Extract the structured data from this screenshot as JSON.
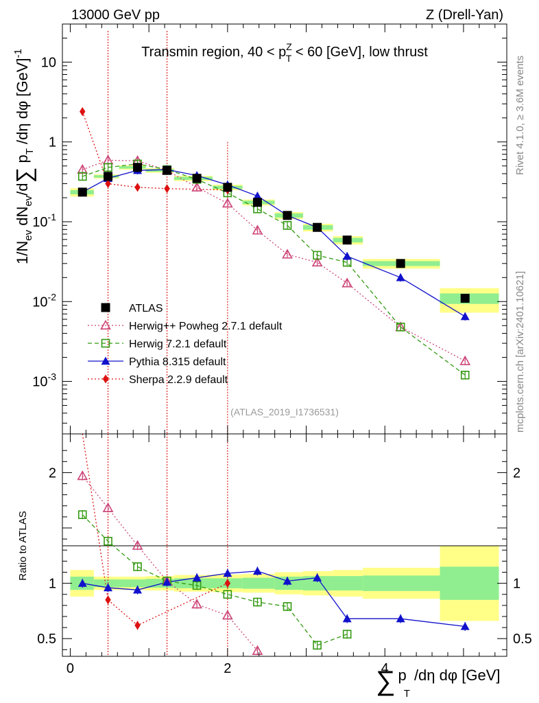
{
  "header": {
    "left": "13000 GeV pp",
    "right": "Z (Drell-Yan)"
  },
  "side_labels": {
    "rivet": "Rivet 4.1.0, ≥ 3.6M events",
    "mcplots": "mcplots.cern.ch [arXiv:2401.10621]"
  },
  "chart_data": {
    "type": "scatter",
    "title": "Transmin region, 40 < pT^Z < 60 [GeV], low thrust",
    "title_parts": {
      "a": "Transmin region, 40 < p",
      "sup": "Z",
      "sub": "T",
      "b": " < 60 [GeV], low thrust"
    },
    "analysis_tag": "(ATLAS_2019_I1736531)",
    "xlabel": "∑ pT /dη dφ [GeV]",
    "xlabel_parts": {
      "sum": "∑",
      "p": "p",
      "sub": "T",
      "rest": "/dη dφ [GeV]"
    },
    "ylabel": "1/Nev dNev/d∑ pT /dη dφ [GeV]^-1",
    "ylabel_parts": {
      "a": "1/N",
      "ev": "ev",
      "b": " dN",
      "c": "/d",
      "sum": "∑",
      "p": " p",
      "T": "T",
      "d": " /dη dφ  [GeV]",
      "exp": "-1"
    },
    "ratio_ylabel": "Ratio to ATLAS",
    "xlim": [
      -0.1,
      5.55
    ],
    "ylim_main": [
      0.00022,
      30
    ],
    "ylim_ratio": [
      0.34,
      2.35
    ],
    "main_y_scale": "log",
    "x_ticks": [
      "0",
      "2",
      "4"
    ],
    "y_ticks_main": [
      "10",
      "1",
      "10^-1",
      "10^-2",
      "10^-3"
    ],
    "y_ticks_ratio": [
      "2",
      "1",
      "0.5"
    ],
    "legend_position": "bottom-left",
    "x": [
      0.155,
      0.48,
      0.855,
      1.23,
      1.61,
      2.0,
      2.38,
      2.76,
      3.14,
      3.52,
      4.2,
      5.02
    ],
    "data_series": {
      "name": "ATLAS",
      "color": "#000000",
      "values": [
        0.235,
        0.37,
        0.48,
        0.44,
        0.35,
        0.27,
        0.175,
        0.12,
        0.085,
        0.059,
        0.03,
        0.011
      ]
    },
    "band_edges": [
      0.0,
      0.3,
      0.62,
      0.96,
      1.32,
      1.81,
      2.19,
      2.6,
      2.96,
      3.34,
      3.72,
      4.7,
      5.45
    ],
    "band_inner": [
      0.06,
      0.035,
      0.035,
      0.04,
      0.045,
      0.045,
      0.05,
      0.06,
      0.065,
      0.065,
      0.07,
      0.15
    ],
    "band_outer": [
      0.12,
      0.06,
      0.06,
      0.065,
      0.075,
      0.08,
      0.085,
      0.1,
      0.11,
      0.12,
      0.14,
      0.34
    ],
    "band_colors": {
      "inner": "#90ee90",
      "outer": "#ffff88"
    },
    "series": [
      {
        "name": "Herwig++ Powheg 2.7.1 default",
        "color": "#cc4477",
        "marker": "open-triangle",
        "dash": "dotted",
        "values": [
          0.45,
          0.59,
          0.58,
          0.44,
          0.27,
          0.17,
          0.078,
          0.039,
          0.031,
          0.017,
          0.0048,
          0.0018
        ],
        "ratio": [
          1.97,
          1.68,
          1.34,
          1.02,
          0.81,
          0.71,
          0.39,
          null,
          null,
          null,
          null,
          null
        ]
      },
      {
        "name": "Herwig 7.2.1 default",
        "color": "#339911",
        "marker": "open-square",
        "dash": "dashed",
        "values": [
          0.37,
          0.48,
          0.53,
          0.45,
          0.34,
          0.23,
          0.145,
          0.09,
          0.038,
          0.031,
          0.0048,
          0.0012
        ],
        "ratio": [
          1.62,
          1.38,
          1.15,
          1.02,
          0.98,
          0.9,
          0.83,
          0.79,
          0.44,
          0.54,
          null,
          null
        ]
      },
      {
        "name": "Pythia 8.315 default",
        "color": "#1111cc",
        "marker": "filled-triangle",
        "dash": "solid",
        "values": [
          0.235,
          0.35,
          0.44,
          0.45,
          0.38,
          0.29,
          0.21,
          0.12,
          0.085,
          0.037,
          0.02,
          0.0065
        ],
        "ratio": [
          1.0,
          0.96,
          0.94,
          1.01,
          1.05,
          1.09,
          1.11,
          1.02,
          1.05,
          0.68,
          0.68,
          0.61
        ]
      },
      {
        "name": "Sherpa 2.2.9 default",
        "color": "#dd1111",
        "marker": "filled-diamond",
        "dash": "dotted",
        "values": [
          2.4,
          0.3,
          0.27,
          0.26,
          null,
          0.25,
          null,
          null,
          null,
          null,
          null,
          null
        ],
        "ratio": [
          10.2,
          0.85,
          0.62,
          null,
          null,
          1.0,
          null,
          null,
          null,
          null,
          null,
          null
        ]
      }
    ]
  }
}
